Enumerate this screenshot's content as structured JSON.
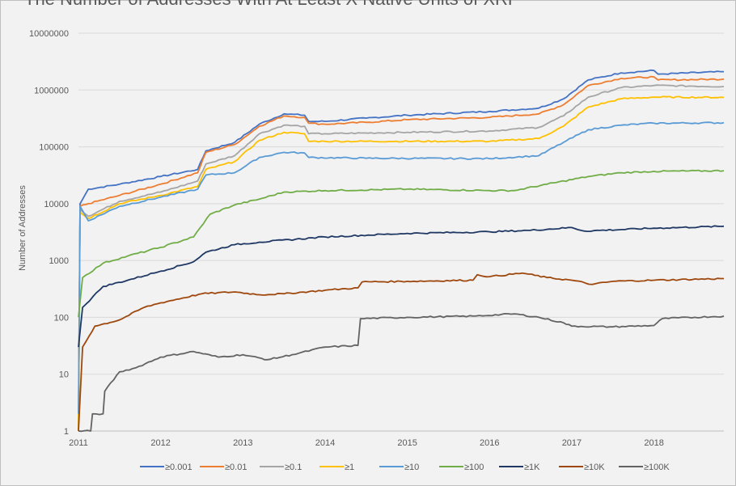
{
  "chart_data": {
    "type": "line",
    "title": "The Number of Addresses With At Least X Native Units of XRP",
    "xlabel": "",
    "ylabel": "Number of Addresses",
    "yscale": "log",
    "ylim": [
      1,
      10000000
    ],
    "xlim": [
      2011.0,
      2018.85
    ],
    "x_ticks": [
      "2011",
      "2012",
      "2013",
      "2014",
      "2015",
      "2016",
      "2017",
      "2018"
    ],
    "y_ticks": [
      "1",
      "10",
      "100",
      "1000",
      "10000",
      "100000",
      "1000000",
      "10000000"
    ],
    "grid": "horizontal",
    "legend_position": "bottom",
    "series": [
      {
        "name": "≥0.001",
        "color": "#4472c4",
        "points": [
          [
            2011.0,
            1
          ],
          [
            2011.02,
            10000
          ],
          [
            2011.12,
            18000
          ],
          [
            2011.5,
            22000
          ],
          [
            2012.0,
            30000
          ],
          [
            2012.45,
            40000
          ],
          [
            2012.55,
            85000
          ],
          [
            2012.9,
            120000
          ],
          [
            2013.2,
            250000
          ],
          [
            2013.5,
            380000
          ],
          [
            2013.75,
            360000
          ],
          [
            2013.8,
            280000
          ],
          [
            2014.0,
            280000
          ],
          [
            2014.5,
            320000
          ],
          [
            2015.0,
            360000
          ],
          [
            2016.0,
            420000
          ],
          [
            2016.6,
            480000
          ],
          [
            2016.9,
            700000
          ],
          [
            2017.2,
            1500000
          ],
          [
            2017.6,
            2000000
          ],
          [
            2018.0,
            2200000
          ],
          [
            2018.05,
            1900000
          ],
          [
            2018.85,
            2100000
          ]
        ]
      },
      {
        "name": "≥0.01",
        "color": "#ed7d31",
        "points": [
          [
            2011.0,
            1
          ],
          [
            2011.02,
            9000
          ],
          [
            2011.12,
            10000
          ],
          [
            2011.5,
            14000
          ],
          [
            2012.0,
            22000
          ],
          [
            2012.45,
            35000
          ],
          [
            2012.55,
            80000
          ],
          [
            2012.9,
            110000
          ],
          [
            2013.2,
            230000
          ],
          [
            2013.5,
            350000
          ],
          [
            2013.75,
            330000
          ],
          [
            2013.8,
            260000
          ],
          [
            2014.0,
            250000
          ],
          [
            2014.5,
            270000
          ],
          [
            2015.0,
            300000
          ],
          [
            2016.0,
            330000
          ],
          [
            2016.6,
            380000
          ],
          [
            2016.9,
            550000
          ],
          [
            2017.2,
            1200000
          ],
          [
            2017.6,
            1600000
          ],
          [
            2018.0,
            1700000
          ],
          [
            2018.05,
            1500000
          ],
          [
            2018.85,
            1550000
          ]
        ]
      },
      {
        "name": "≥0.1",
        "color": "#a5a5a5",
        "points": [
          [
            2011.0,
            1
          ],
          [
            2011.02,
            8000
          ],
          [
            2011.12,
            6000
          ],
          [
            2011.5,
            11000
          ],
          [
            2012.0,
            16000
          ],
          [
            2012.45,
            25000
          ],
          [
            2012.55,
            50000
          ],
          [
            2012.9,
            70000
          ],
          [
            2013.2,
            170000
          ],
          [
            2013.5,
            240000
          ],
          [
            2013.75,
            230000
          ],
          [
            2013.8,
            170000
          ],
          [
            2014.0,
            170000
          ],
          [
            2015.0,
            180000
          ],
          [
            2016.0,
            190000
          ],
          [
            2016.6,
            220000
          ],
          [
            2016.9,
            350000
          ],
          [
            2017.2,
            750000
          ],
          [
            2017.6,
            1100000
          ],
          [
            2018.0,
            1200000
          ],
          [
            2018.85,
            1150000
          ]
        ]
      },
      {
        "name": "≥1",
        "color": "#ffc000",
        "points": [
          [
            2011.0,
            1
          ],
          [
            2011.02,
            7000
          ],
          [
            2011.12,
            5500
          ],
          [
            2011.5,
            10000
          ],
          [
            2012.0,
            14000
          ],
          [
            2012.45,
            20000
          ],
          [
            2012.55,
            40000
          ],
          [
            2012.9,
            55000
          ],
          [
            2013.2,
            130000
          ],
          [
            2013.5,
            180000
          ],
          [
            2013.75,
            170000
          ],
          [
            2013.8,
            125000
          ],
          [
            2014.0,
            125000
          ],
          [
            2016.0,
            125000
          ],
          [
            2016.6,
            140000
          ],
          [
            2016.9,
            230000
          ],
          [
            2017.2,
            500000
          ],
          [
            2017.6,
            700000
          ],
          [
            2018.0,
            750000
          ],
          [
            2018.85,
            740000
          ]
        ]
      },
      {
        "name": "≥10",
        "color": "#5b9bd5",
        "points": [
          [
            2011.0,
            2
          ],
          [
            2011.02,
            9000
          ],
          [
            2011.12,
            5000
          ],
          [
            2011.5,
            9000
          ],
          [
            2012.0,
            13000
          ],
          [
            2012.45,
            18000
          ],
          [
            2012.55,
            32000
          ],
          [
            2012.9,
            35000
          ],
          [
            2013.2,
            65000
          ],
          [
            2013.5,
            80000
          ],
          [
            2013.75,
            78000
          ],
          [
            2013.8,
            65000
          ],
          [
            2014.5,
            63000
          ],
          [
            2016.0,
            62000
          ],
          [
            2016.6,
            70000
          ],
          [
            2016.9,
            120000
          ],
          [
            2017.2,
            200000
          ],
          [
            2017.6,
            240000
          ],
          [
            2018.0,
            260000
          ],
          [
            2018.85,
            265000
          ]
        ]
      },
      {
        "name": "≥100",
        "color": "#70ad47",
        "points": [
          [
            2011.0,
            100
          ],
          [
            2011.05,
            500
          ],
          [
            2011.3,
            900
          ],
          [
            2011.6,
            1200
          ],
          [
            2012.0,
            1700
          ],
          [
            2012.4,
            2600
          ],
          [
            2012.6,
            6500
          ],
          [
            2012.9,
            9500
          ],
          [
            2013.2,
            12000
          ],
          [
            2013.5,
            16000
          ],
          [
            2014.0,
            17000
          ],
          [
            2015.0,
            18000
          ],
          [
            2016.0,
            17000
          ],
          [
            2016.3,
            17000
          ],
          [
            2016.7,
            22000
          ],
          [
            2017.2,
            30000
          ],
          [
            2017.6,
            35000
          ],
          [
            2018.0,
            37000
          ],
          [
            2018.85,
            38000
          ]
        ]
      },
      {
        "name": "≥1K",
        "color": "#203864",
        "points": [
          [
            2011.0,
            30
          ],
          [
            2011.05,
            150
          ],
          [
            2011.3,
            350
          ],
          [
            2011.6,
            450
          ],
          [
            2012.0,
            650
          ],
          [
            2012.4,
            950
          ],
          [
            2012.55,
            1400
          ],
          [
            2012.9,
            1900
          ],
          [
            2013.2,
            2100
          ],
          [
            2014.0,
            2600
          ],
          [
            2015.0,
            3000
          ],
          [
            2016.0,
            3200
          ],
          [
            2016.5,
            3400
          ],
          [
            2017.0,
            3800
          ],
          [
            2017.15,
            3300
          ],
          [
            2018.0,
            3700
          ],
          [
            2018.85,
            4000
          ]
        ]
      },
      {
        "name": "≥10K",
        "color": "#9e480e",
        "points": [
          [
            2011.0,
            1
          ],
          [
            2011.05,
            30
          ],
          [
            2011.2,
            70
          ],
          [
            2011.5,
            90
          ],
          [
            2011.8,
            150
          ],
          [
            2012.0,
            180
          ],
          [
            2012.5,
            260
          ],
          [
            2012.9,
            280
          ],
          [
            2013.2,
            250
          ],
          [
            2013.5,
            260
          ],
          [
            2014.0,
            300
          ],
          [
            2014.4,
            330
          ],
          [
            2014.45,
            420
          ],
          [
            2015.0,
            430
          ],
          [
            2015.8,
            450
          ],
          [
            2015.85,
            560
          ],
          [
            2016.0,
            520
          ],
          [
            2016.4,
            600
          ],
          [
            2016.7,
            500
          ],
          [
            2017.0,
            450
          ],
          [
            2017.25,
            380
          ],
          [
            2017.5,
            430
          ],
          [
            2018.0,
            450
          ],
          [
            2018.85,
            480
          ]
        ]
      },
      {
        "name": "≥100K",
        "color": "#636363",
        "points": [
          [
            2011.0,
            1
          ],
          [
            2011.15,
            1
          ],
          [
            2011.17,
            2
          ],
          [
            2011.3,
            2
          ],
          [
            2011.32,
            5
          ],
          [
            2011.5,
            11
          ],
          [
            2011.7,
            13
          ],
          [
            2012.0,
            20
          ],
          [
            2012.4,
            25
          ],
          [
            2012.7,
            20
          ],
          [
            2013.0,
            22
          ],
          [
            2013.3,
            18
          ],
          [
            2013.6,
            22
          ],
          [
            2014.0,
            30
          ],
          [
            2014.4,
            32
          ],
          [
            2014.43,
            95
          ],
          [
            2015.0,
            100
          ],
          [
            2015.8,
            105
          ],
          [
            2016.3,
            115
          ],
          [
            2016.6,
            100
          ],
          [
            2016.9,
            80
          ],
          [
            2017.0,
            70
          ],
          [
            2017.5,
            68
          ],
          [
            2018.0,
            72
          ],
          [
            2018.1,
            95
          ],
          [
            2018.85,
            105
          ]
        ]
      }
    ]
  }
}
